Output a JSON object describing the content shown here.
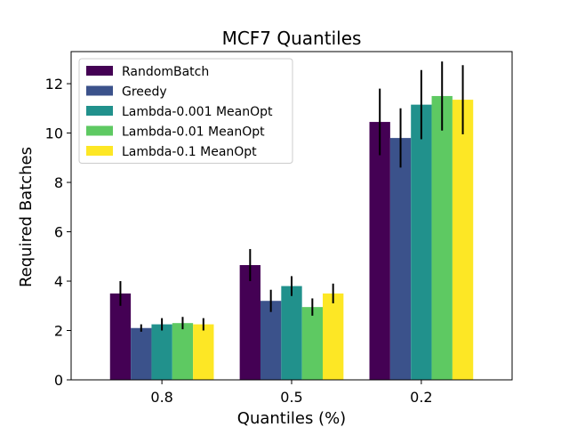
{
  "chart_data": {
    "type": "bar",
    "title": "MCF7 Quantiles",
    "xlabel": "Quantiles (%)",
    "ylabel": "Required Batches",
    "categories": [
      "0.8",
      "0.5",
      "0.2"
    ],
    "ylim": [
      0,
      13.3
    ],
    "yticks": [
      0,
      2,
      4,
      6,
      8,
      10,
      12
    ],
    "grid": false,
    "legend_position": "upper-left",
    "series": [
      {
        "name": "RandomBatch",
        "color": "#440154",
        "values": [
          3.5,
          4.65,
          10.45
        ],
        "errors": [
          0.5,
          0.65,
          1.35
        ]
      },
      {
        "name": "Greedy",
        "color": "#3b528b",
        "values": [
          2.1,
          3.2,
          9.8
        ],
        "errors": [
          0.15,
          0.45,
          1.2
        ]
      },
      {
        "name": "Lambda-0.001 MeanOpt",
        "color": "#21918c",
        "values": [
          2.25,
          3.8,
          11.15
        ],
        "errors": [
          0.25,
          0.4,
          1.4
        ]
      },
      {
        "name": "Lambda-0.01 MeanOpt",
        "color": "#5ec962",
        "values": [
          2.3,
          2.95,
          11.5
        ],
        "errors": [
          0.25,
          0.35,
          1.4
        ]
      },
      {
        "name": "Lambda-0.1 MeanOpt",
        "color": "#fde725",
        "values": [
          2.25,
          3.5,
          11.35
        ],
        "errors": [
          0.25,
          0.4,
          1.4
        ]
      }
    ]
  }
}
